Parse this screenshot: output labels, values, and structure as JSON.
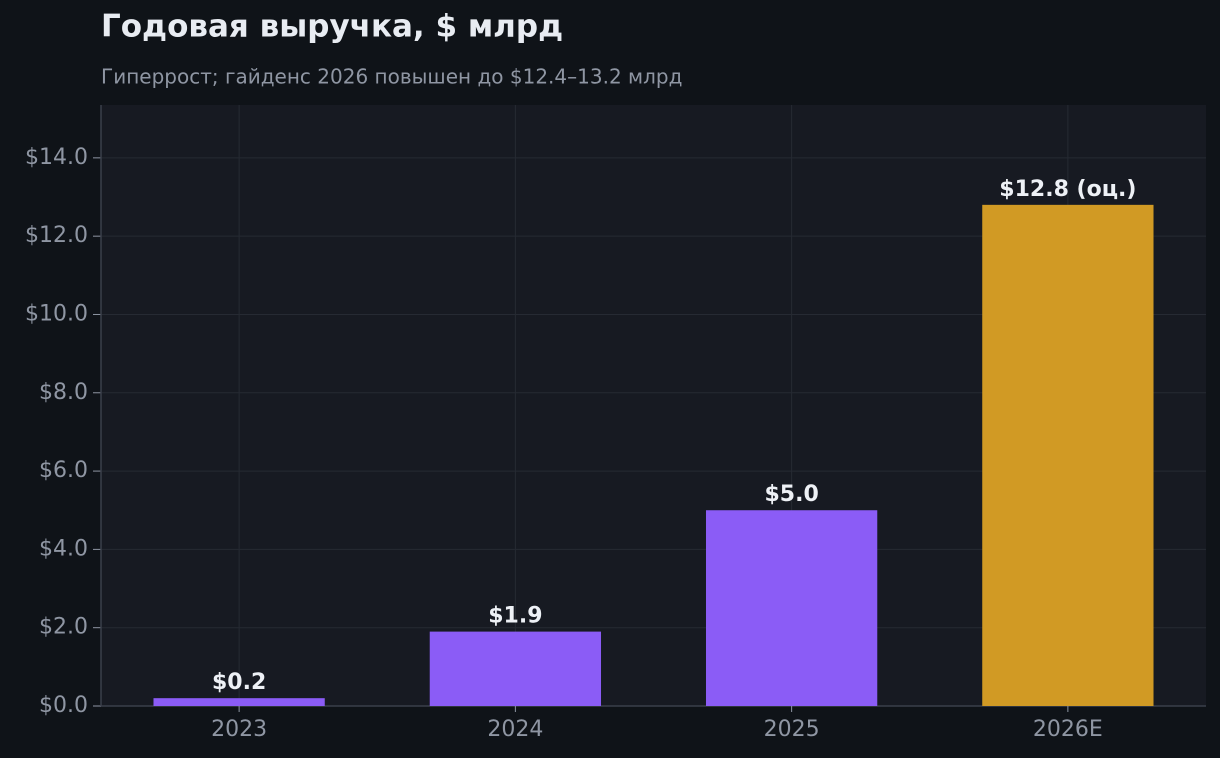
{
  "chart_data": {
    "type": "bar",
    "title": "Годовая выручка, $ млрд",
    "subtitle": "Гиперрост; гайденс 2026 повышен до $12.4–13.2 млрд",
    "categories": [
      "2023",
      "2024",
      "2025",
      "2026E"
    ],
    "values": [
      0.2,
      1.9,
      5.0,
      12.8
    ],
    "value_labels": [
      "$0.2",
      "$1.9",
      "$5.0",
      "$12.8 (оц.)"
    ],
    "colors": [
      "#8b5cf6",
      "#8b5cf6",
      "#8b5cf6",
      "#d19a24"
    ],
    "ylim": [
      0,
      15.35
    ],
    "yticks": [
      {
        "value": 0,
        "label": "$0.0"
      },
      {
        "value": 2,
        "label": "$2.0"
      },
      {
        "value": 4,
        "label": "$4.0"
      },
      {
        "value": 6,
        "label": "$6.0"
      },
      {
        "value": 8,
        "label": "$8.0"
      },
      {
        "value": 10,
        "label": "$10.0"
      },
      {
        "value": 12,
        "label": "$12.0"
      },
      {
        "value": 14,
        "label": "$14.0"
      }
    ],
    "grid": true
  }
}
